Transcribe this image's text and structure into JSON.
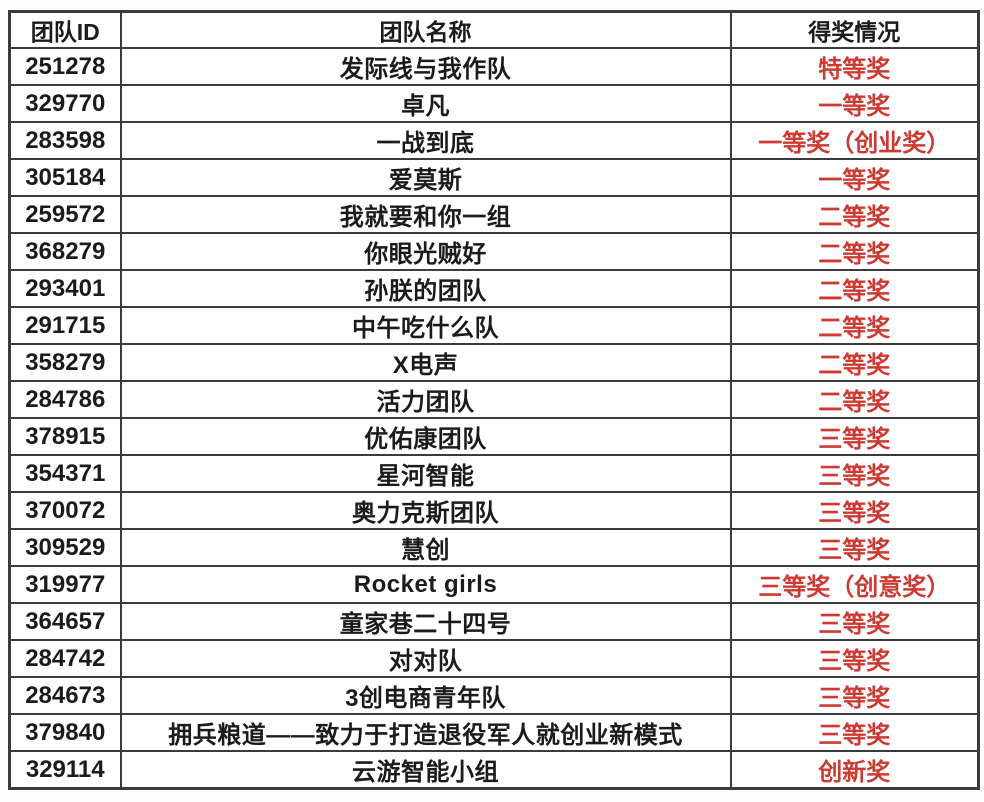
{
  "table": {
    "columns": [
      {
        "key": "id",
        "label": "团队ID"
      },
      {
        "key": "name",
        "label": "团队名称"
      },
      {
        "key": "award",
        "label": "得奖情况"
      }
    ],
    "rows": [
      {
        "id": "251278",
        "name": "发际线与我作队",
        "award": "特等奖"
      },
      {
        "id": "329770",
        "name": "卓凡",
        "award": "一等奖"
      },
      {
        "id": "283598",
        "name": "一战到底",
        "award": "一等奖（创业奖）"
      },
      {
        "id": "305184",
        "name": "爱莫斯",
        "award": "一等奖"
      },
      {
        "id": "259572",
        "name": "我就要和你一组",
        "award": "二等奖"
      },
      {
        "id": "368279",
        "name": "你眼光贼好",
        "award": "二等奖"
      },
      {
        "id": "293401",
        "name": "孙朕的团队",
        "award": "二等奖"
      },
      {
        "id": "291715",
        "name": "中午吃什么队",
        "award": "二等奖"
      },
      {
        "id": "358279",
        "name": "X电声",
        "award": "二等奖"
      },
      {
        "id": "284786",
        "name": "活力团队",
        "award": "二等奖"
      },
      {
        "id": "378915",
        "name": "优佑康团队",
        "award": "三等奖"
      },
      {
        "id": "354371",
        "name": "星河智能",
        "award": "三等奖"
      },
      {
        "id": "370072",
        "name": "奥力克斯团队",
        "award": "三等奖"
      },
      {
        "id": "309529",
        "name": "慧创",
        "award": "三等奖"
      },
      {
        "id": "319977",
        "name": "Rocket girls",
        "award": "三等奖（创意奖）"
      },
      {
        "id": "364657",
        "name": "童家巷二十四号",
        "award": "三等奖"
      },
      {
        "id": "284742",
        "name": "对对队",
        "award": "三等奖"
      },
      {
        "id": "284673",
        "name": "3创电商青年队",
        "award": "三等奖"
      },
      {
        "id": "379840",
        "name": "拥兵粮道——致力于打造退役军人就创业新模式",
        "award": "三等奖"
      },
      {
        "id": "329114",
        "name": "云游智能小组",
        "award": "创新奖"
      }
    ],
    "colors": {
      "award_red": "#cd3a32",
      "text": "#1b1b1b",
      "border": "#3b3b3b",
      "background": "#ffffff"
    }
  }
}
